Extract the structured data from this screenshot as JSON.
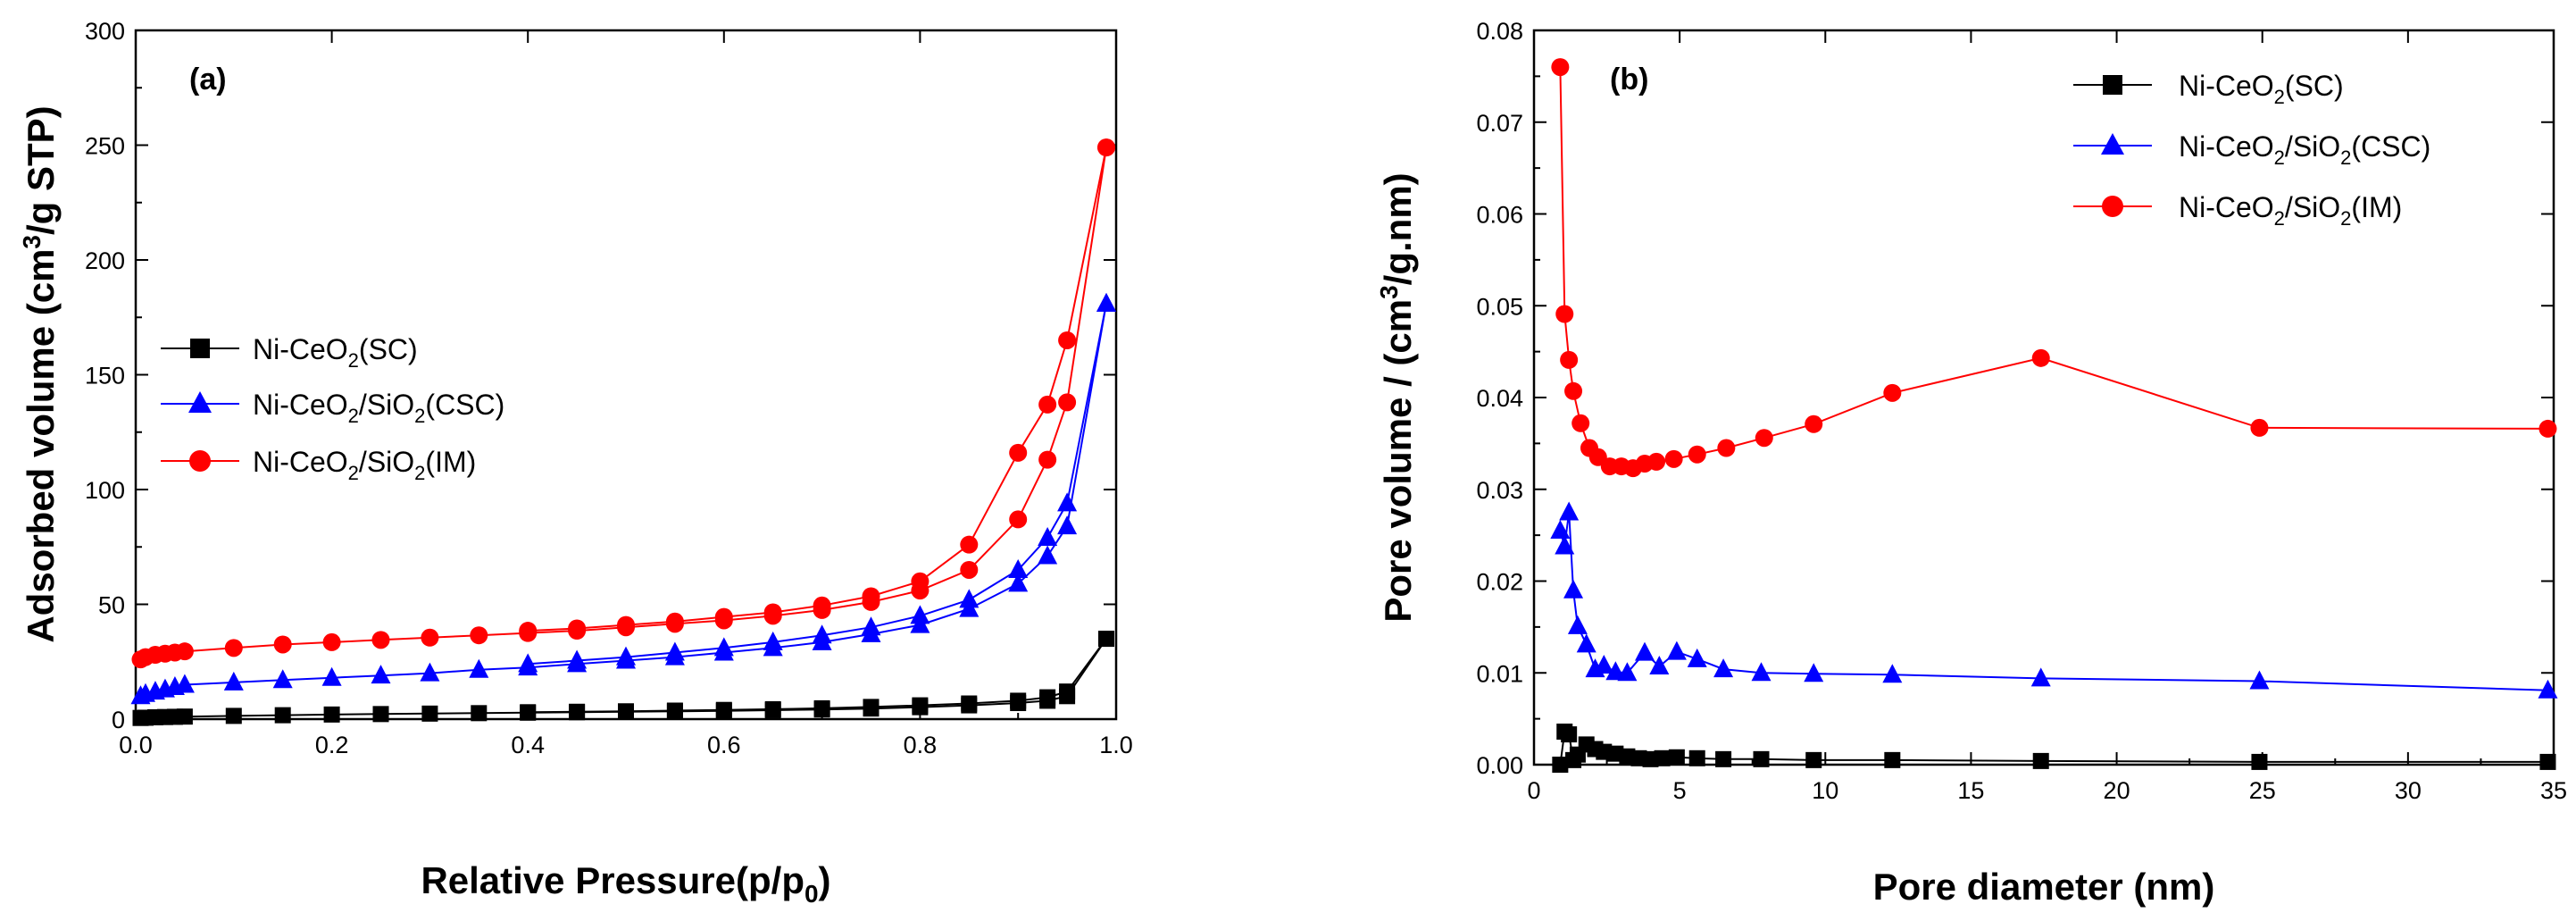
{
  "chart_data": [
    {
      "type": "line",
      "panel_label": "(a)",
      "xlabel": {
        "main": "Relative Pressure(p/p",
        "sub": "0",
        "tail": ")"
      },
      "ylabel": {
        "pre": "Adsorbed volume (cm",
        "sup": "3",
        "post": "/g STP)"
      },
      "xlim": [
        0,
        1.0
      ],
      "ylim": [
        0,
        300
      ],
      "xticks": [
        "0.0",
        "0.2",
        "0.4",
        "0.6",
        "0.8",
        "1.0"
      ],
      "yticks": [
        "0",
        "50",
        "100",
        "150",
        "200",
        "250",
        "300"
      ],
      "legend_position": "center-left",
      "series": [
        {
          "name": "Ni-CeO2(SC)",
          "legend": {
            "a": "Ni-CeO",
            "sub1": "2",
            "b": "(SC)"
          },
          "color": "#000000",
          "marker": "square",
          "adsorption": {
            "x": [
              0.005,
              0.01,
              0.02,
              0.03,
              0.04,
              0.05,
              0.1,
              0.15,
              0.2,
              0.25,
              0.3,
              0.35,
              0.4,
              0.45,
              0.5,
              0.55,
              0.6,
              0.65,
              0.7,
              0.75,
              0.8,
              0.85,
              0.9,
              0.93,
              0.95,
              0.99
            ],
            "y": [
              0.5,
              0.6,
              0.8,
              0.9,
              1.0,
              1.1,
              1.4,
              1.7,
              2.0,
              2.2,
              2.4,
              2.6,
              2.8,
              3.0,
              3.2,
              3.4,
              3.6,
              3.9,
              4.2,
              4.6,
              5.2,
              6.0,
              7.0,
              8.0,
              10.0,
              35.0
            ]
          },
          "desorption": {
            "x": [
              0.99,
              0.95,
              0.93,
              0.9,
              0.85,
              0.8,
              0.75,
              0.7,
              0.65,
              0.6,
              0.55,
              0.5,
              0.45,
              0.4
            ],
            "y": [
              35.0,
              12.0,
              9.5,
              8.0,
              6.8,
              6.0,
              5.3,
              4.7,
              4.3,
              4.0,
              3.7,
              3.4,
              3.2,
              3.0
            ]
          }
        },
        {
          "name": "Ni-CeO2/SiO2(CSC)",
          "legend": {
            "a": "Ni-CeO",
            "sub1": "2",
            "b": "/SiO",
            "sub2": "2",
            "c": "(CSC)"
          },
          "color": "#0000ff",
          "marker": "triangle",
          "adsorption": {
            "x": [
              0.005,
              0.01,
              0.02,
              0.03,
              0.04,
              0.05,
              0.1,
              0.15,
              0.2,
              0.25,
              0.3,
              0.35,
              0.4,
              0.45,
              0.5,
              0.55,
              0.6,
              0.65,
              0.7,
              0.75,
              0.8,
              0.85,
              0.9,
              0.93,
              0.95,
              0.99
            ],
            "y": [
              10,
              11,
              12,
              13,
              14,
              15,
              16,
              17,
              18,
              19,
              20,
              21.5,
              22.5,
              24,
              25.5,
              27,
              29,
              31,
              33.5,
              37,
              41,
              48,
              59,
              71,
              84,
              181
            ]
          },
          "desorption": {
            "x": [
              0.99,
              0.95,
              0.93,
              0.9,
              0.85,
              0.8,
              0.75,
              0.7,
              0.65,
              0.6,
              0.55,
              0.5,
              0.45,
              0.4
            ],
            "y": [
              181,
              94,
              79,
              65,
              52,
              45,
              40,
              36.5,
              33.5,
              31,
              29,
              27,
              25.5,
              24
            ]
          }
        },
        {
          "name": "Ni-CeO2/SiO2(IM)",
          "legend": {
            "a": "Ni-CeO",
            "sub1": "2",
            "b": "/SiO",
            "sub2": "2",
            "c": "(IM)"
          },
          "color": "#ff0000",
          "marker": "circle",
          "adsorption": {
            "x": [
              0.005,
              0.01,
              0.02,
              0.03,
              0.04,
              0.05,
              0.1,
              0.15,
              0.2,
              0.25,
              0.3,
              0.35,
              0.4,
              0.45,
              0.5,
              0.55,
              0.6,
              0.65,
              0.7,
              0.75,
              0.8,
              0.85,
              0.9,
              0.93,
              0.95,
              0.99
            ],
            "y": [
              26,
              27,
              28,
              28.5,
              29,
              29.5,
              31,
              32.5,
              33.5,
              34.5,
              35.5,
              36.5,
              37.5,
              38.5,
              40,
              41.5,
              43,
              45,
              47.5,
              51,
              56,
              65,
              87,
              113,
              138,
              249
            ]
          },
          "desorption": {
            "x": [
              0.99,
              0.95,
              0.93,
              0.9,
              0.85,
              0.8,
              0.75,
              0.7,
              0.65,
              0.6,
              0.55,
              0.5,
              0.45,
              0.4
            ],
            "y": [
              249,
              165,
              137,
              116,
              76,
              60,
              53.5,
              49.5,
              46.5,
              44.5,
              42.5,
              41,
              39.5,
              38.5
            ]
          }
        }
      ]
    },
    {
      "type": "line",
      "panel_label": "(b)",
      "xlabel": {
        "main": "Pore diameter (nm)"
      },
      "ylabel": {
        "pre": "Pore volume / (cm",
        "sup": "3",
        "post": "/g.nm)"
      },
      "xlim": [
        0,
        35
      ],
      "ylim": [
        0,
        0.08
      ],
      "xticks": [
        "0",
        "5",
        "10",
        "15",
        "20",
        "25",
        "30",
        "35"
      ],
      "yticks": [
        "0.00",
        "0.01",
        "0.02",
        "0.03",
        "0.04",
        "0.05",
        "0.06",
        "0.07",
        "0.08"
      ],
      "legend_position": "top-right",
      "series": [
        {
          "name": "Ni-CeO2(SC)",
          "legend": {
            "a": "Ni-CeO",
            "sub1": "2",
            "b": "(SC)"
          },
          "color": "#000000",
          "marker": "square",
          "x": [
            0.9,
            1.05,
            1.2,
            1.35,
            1.5,
            1.8,
            2.1,
            2.4,
            2.8,
            3.2,
            3.6,
            4.0,
            4.4,
            4.9,
            5.6,
            6.5,
            7.8,
            9.6,
            12.3,
            17.4,
            24.9,
            34.8
          ],
          "y": [
            0.0,
            0.0036,
            0.0033,
            0.0005,
            0.0011,
            0.0022,
            0.0017,
            0.0014,
            0.0012,
            0.0009,
            0.0007,
            0.0006,
            0.0007,
            0.0008,
            0.0007,
            0.0006,
            0.0006,
            0.0005,
            0.0005,
            0.0004,
            0.0003,
            0.0003
          ]
        },
        {
          "name": "Ni-CeO2/SiO2(CSC)",
          "legend": {
            "a": "Ni-CeO",
            "sub1": "2",
            "b": "/SiO",
            "sub2": "2",
            "c": "(CSC)"
          },
          "color": "#0000ff",
          "marker": "triangle",
          "x": [
            0.9,
            1.05,
            1.2,
            1.35,
            1.5,
            1.8,
            2.1,
            2.4,
            2.8,
            3.2,
            3.8,
            4.3,
            4.9,
            5.6,
            6.5,
            7.8,
            9.6,
            12.3,
            17.4,
            24.9,
            34.8
          ],
          "y": [
            0.0255,
            0.0238,
            0.0275,
            0.019,
            0.0151,
            0.0131,
            0.0104,
            0.0108,
            0.0101,
            0.01,
            0.0122,
            0.0107,
            0.0123,
            0.0115,
            0.0104,
            0.01,
            0.0099,
            0.0098,
            0.0094,
            0.0091,
            0.0081
          ]
        },
        {
          "name": "Ni-CeO2/SiO2(IM)",
          "legend": {
            "a": "Ni-CeO",
            "sub1": "2",
            "b": "/SiO",
            "sub2": "2",
            "c": "(IM)"
          },
          "color": "#ff0000",
          "marker": "circle",
          "x": [
            0.9,
            1.05,
            1.2,
            1.35,
            1.6,
            1.9,
            2.2,
            2.6,
            3.0,
            3.4,
            3.8,
            4.2,
            4.8,
            5.6,
            6.6,
            7.9,
            9.6,
            12.3,
            17.4,
            24.9,
            34.8
          ],
          "y": [
            0.076,
            0.0491,
            0.0441,
            0.0407,
            0.0372,
            0.0345,
            0.0335,
            0.0325,
            0.0325,
            0.0323,
            0.0328,
            0.033,
            0.0333,
            0.0338,
            0.0345,
            0.0356,
            0.0371,
            0.0405,
            0.0443,
            0.0367,
            0.0366
          ]
        }
      ]
    }
  ]
}
